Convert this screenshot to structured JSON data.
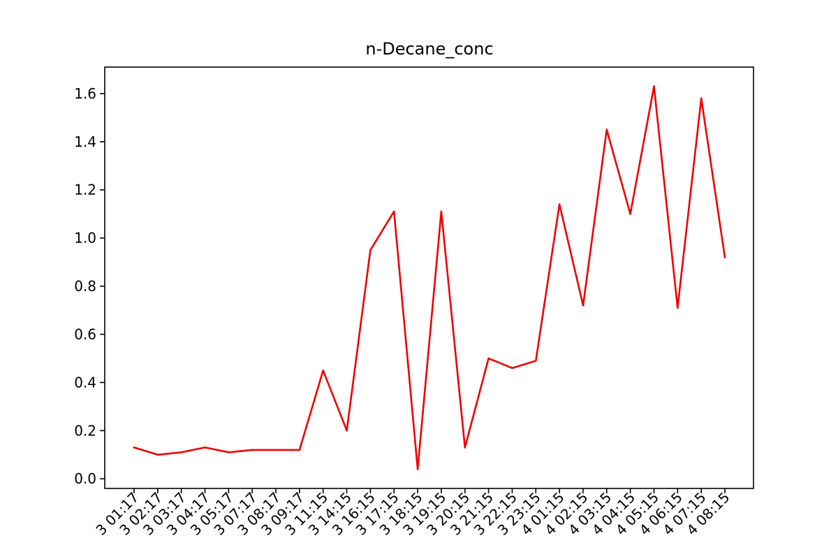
{
  "chart_data": {
    "type": "line",
    "title": "n-Decane_conc",
    "xlabel": "",
    "ylabel": "",
    "ylim": [
      -0.04,
      1.71
    ],
    "yticks": [
      0.0,
      0.2,
      0.4,
      0.6,
      0.8,
      1.0,
      1.2,
      1.4,
      1.6
    ],
    "ytick_labels": [
      "0.0",
      "0.2",
      "0.4",
      "0.6",
      "0.8",
      "1.0",
      "1.2",
      "1.4",
      "1.6"
    ],
    "x_tick_labels": [
      "3 01:17",
      "3 02:17",
      "3 03:17",
      "3 04:17",
      "3 05:17",
      "3 07:17",
      "3 08:17",
      "3 09:17",
      "3 11:15",
      "3 14:15",
      "3 16:15",
      "3 17:15",
      "3 18:15",
      "3 19:15",
      "3 20:15",
      "3 21:15",
      "3 22:15",
      "3 23:15",
      "4 01:15",
      "4 02:15",
      "4 03:15",
      "4 04:15",
      "4 05:15",
      "4 06:15",
      "4 07:15",
      "4 08:15"
    ],
    "series": [
      {
        "color": "#ee0000",
        "values": [
          0.13,
          0.1,
          0.11,
          0.13,
          0.11,
          0.12,
          0.12,
          0.12,
          0.45,
          0.2,
          0.95,
          1.11,
          0.04,
          1.11,
          0.13,
          0.5,
          0.46,
          0.49,
          1.14,
          0.72,
          1.45,
          1.1,
          1.63,
          0.71,
          1.58,
          0.92
        ]
      }
    ],
    "grid": false,
    "legend": "none"
  }
}
